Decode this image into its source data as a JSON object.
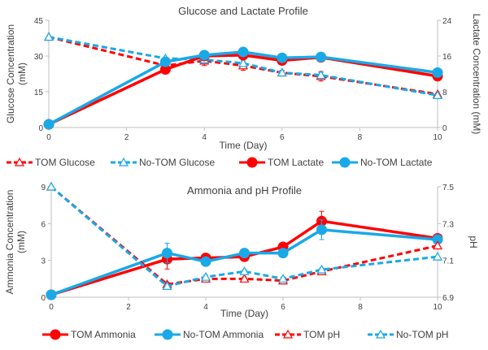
{
  "chart_data": [
    {
      "type": "line",
      "title": "Glucose and Lactate Profile",
      "xlabel": "Time (Day)",
      "ylabel": "Glucose Concentration (mM)",
      "ylabel_lines": [
        "Glucose Concentration",
        "(mM)"
      ],
      "y2label": "Lactate Concentration (mM)",
      "xlim": [
        0,
        10
      ],
      "ylim": [
        0,
        45
      ],
      "y2lim": [
        0,
        24
      ],
      "xticks": [
        0,
        2,
        4,
        6,
        8,
        10
      ],
      "yticks": [
        0,
        15,
        30,
        45
      ],
      "y2ticks": [
        0,
        8,
        16,
        24
      ],
      "x": [
        0,
        3,
        4,
        5,
        6,
        7,
        10
      ],
      "series": [
        {
          "name": "TOM Glucose",
          "axis": "left",
          "color": "#ff0000",
          "style": "dashed",
          "marker": "triangle",
          "values": [
            38,
            26,
            28,
            26,
            23,
            21.5,
            14
          ],
          "errors": [
            0,
            0,
            2,
            2,
            1,
            2,
            0
          ]
        },
        {
          "name": "No-TOM Glucose",
          "axis": "left",
          "color": "#19a9e7",
          "style": "dashed",
          "marker": "triangle",
          "values": [
            38,
            29,
            28.5,
            27,
            23,
            22,
            13.5
          ],
          "errors": [
            0,
            0,
            1,
            1,
            1,
            1,
            0
          ]
        },
        {
          "name": "TOM Lactate",
          "axis": "right",
          "color": "#ff0000",
          "style": "solid",
          "marker": "circle",
          "values": [
            0.7,
            13,
            16,
            16.2,
            15,
            15.7,
            11.5
          ],
          "errors": [
            0,
            0,
            0.5,
            0.5,
            0.4,
            0.8,
            0
          ]
        },
        {
          "name": "No-TOM Lactate",
          "axis": "right",
          "color": "#19a9e7",
          "style": "solid",
          "marker": "circle",
          "values": [
            0.7,
            14.7,
            16.2,
            16.9,
            15.6,
            15.8,
            12.3
          ],
          "errors": [
            0,
            0,
            0.5,
            0.5,
            0.4,
            0.6,
            0
          ]
        }
      ]
    },
    {
      "type": "line",
      "title": "Ammonia and pH Profile",
      "xlabel": "Time (Day)",
      "ylabel": "Ammonia Concentration (mM)",
      "ylabel_lines": [
        "Ammonia Concentration",
        "(mM)"
      ],
      "y2label": "pH",
      "xlim": [
        0,
        10
      ],
      "ylim": [
        0,
        9
      ],
      "y2lim": [
        6.9,
        7.5
      ],
      "xticks": [
        0,
        2,
        4,
        6,
        8,
        10
      ],
      "yticks": [
        0,
        3,
        6,
        9
      ],
      "y2ticks": [
        6.9,
        7.1,
        7.3,
        7.5
      ],
      "x": [
        0,
        3,
        4,
        5,
        6,
        7,
        10
      ],
      "series": [
        {
          "name": "TOM Ammonia",
          "axis": "left",
          "color": "#ff0000",
          "style": "solid",
          "marker": "circle",
          "values": [
            0.2,
            3.1,
            3.2,
            3.3,
            4.1,
            6.2,
            4.8
          ],
          "errors": [
            0,
            0.8,
            0.3,
            0.2,
            0.3,
            0.8,
            0
          ]
        },
        {
          "name": "No-TOM Ammonia",
          "axis": "left",
          "color": "#19a9e7",
          "style": "solid",
          "marker": "circle",
          "values": [
            0.2,
            3.6,
            2.9,
            3.6,
            3.6,
            5.5,
            4.7
          ],
          "errors": [
            0,
            0.8,
            0.3,
            0.3,
            0.2,
            0.8,
            0
          ]
        },
        {
          "name": "TOM pH",
          "axis": "right",
          "color": "#ff0000",
          "style": "dashed",
          "marker": "triangle",
          "values": [
            7.5,
            6.97,
            7.0,
            7.0,
            6.99,
            7.04,
            7.18
          ],
          "errors": [
            0,
            0.01,
            0.01,
            0.01,
            0.01,
            0.01,
            0
          ]
        },
        {
          "name": "No-TOM pH",
          "axis": "right",
          "color": "#19a9e7",
          "style": "dashed",
          "marker": "triangle",
          "values": [
            7.5,
            6.96,
            7.01,
            7.04,
            7.0,
            7.05,
            7.12
          ],
          "errors": [
            0,
            0.01,
            0.01,
            0.01,
            0.01,
            0.01,
            0
          ]
        }
      ]
    }
  ]
}
